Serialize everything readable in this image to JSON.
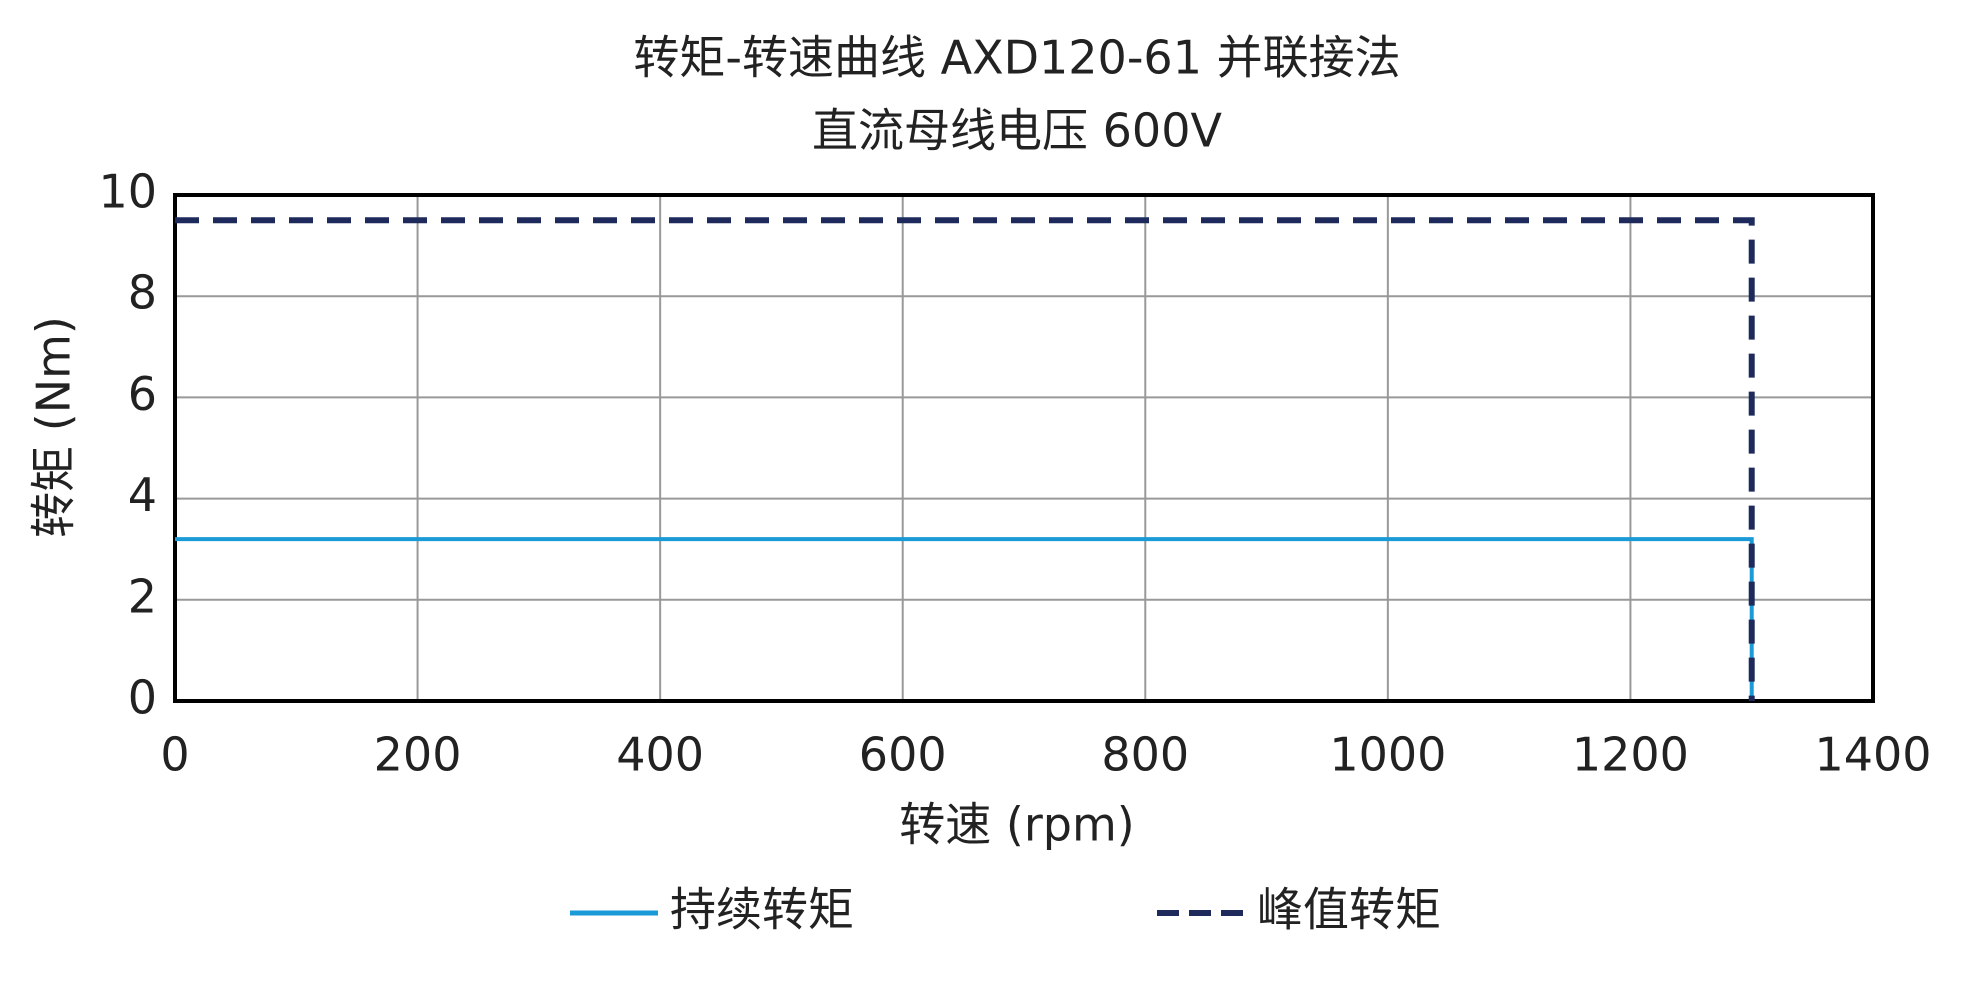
{
  "chart_data": {
    "type": "line",
    "title": "转矩-转速曲线 AXD120-61 并联接法",
    "subtitle": "直流母线电压 600V",
    "x_label": "转速 (rpm)",
    "y_label": "转矩 (Nm)",
    "x": [
      0,
      1300,
      1300
    ],
    "series": [
      {
        "name": "持续转矩",
        "color": "#1a9ad6",
        "dashed": false,
        "values": [
          3.2,
          3.2,
          0
        ]
      },
      {
        "name": "峰值转矩",
        "color": "#1f2a5c",
        "dashed": true,
        "values": [
          9.5,
          9.5,
          0
        ]
      }
    ],
    "xlim": [
      0,
      1400
    ],
    "xticks": [
      0,
      200,
      400,
      600,
      800,
      1000,
      1200,
      1400
    ],
    "ylim": [
      0,
      10
    ],
    "yticks": [
      0,
      2,
      4,
      6,
      8,
      10
    ],
    "grid": true,
    "legend": "bottom"
  }
}
